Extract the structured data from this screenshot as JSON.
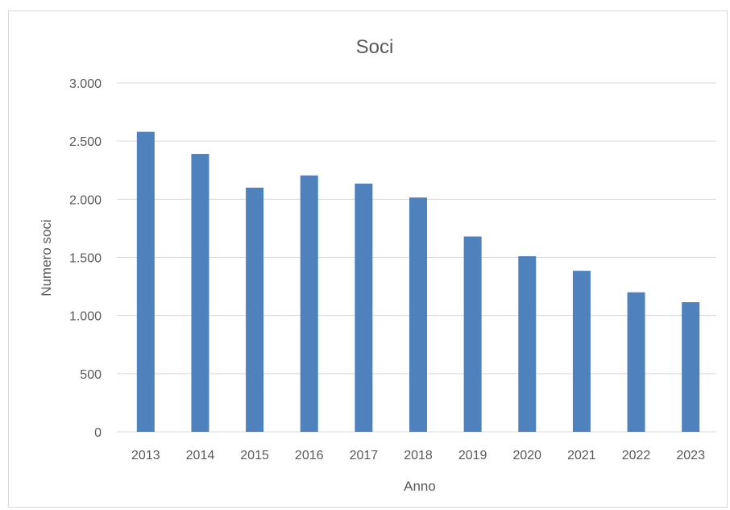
{
  "chart_data": {
    "type": "bar",
    "title": "Soci",
    "xlabel": "Anno",
    "ylabel": "Numero soci",
    "categories": [
      "2013",
      "2014",
      "2015",
      "2016",
      "2017",
      "2018",
      "2019",
      "2020",
      "2021",
      "2022",
      "2023"
    ],
    "series": [
      {
        "values": [
          2580,
          2390,
          2100,
          2205,
          2135,
          2015,
          1680,
          1510,
          1385,
          1200,
          1115
        ]
      }
    ],
    "ylim": [
      0,
      3000
    ],
    "yticks": [
      0,
      500,
      1000,
      1500,
      2000,
      2500,
      3000
    ],
    "ytick_labels": [
      "0",
      "500",
      "1.000",
      "1.500",
      "2.000",
      "2.500",
      "3.000"
    ],
    "grid": true,
    "legend": "none",
    "bar_color": "#4f81bd"
  }
}
